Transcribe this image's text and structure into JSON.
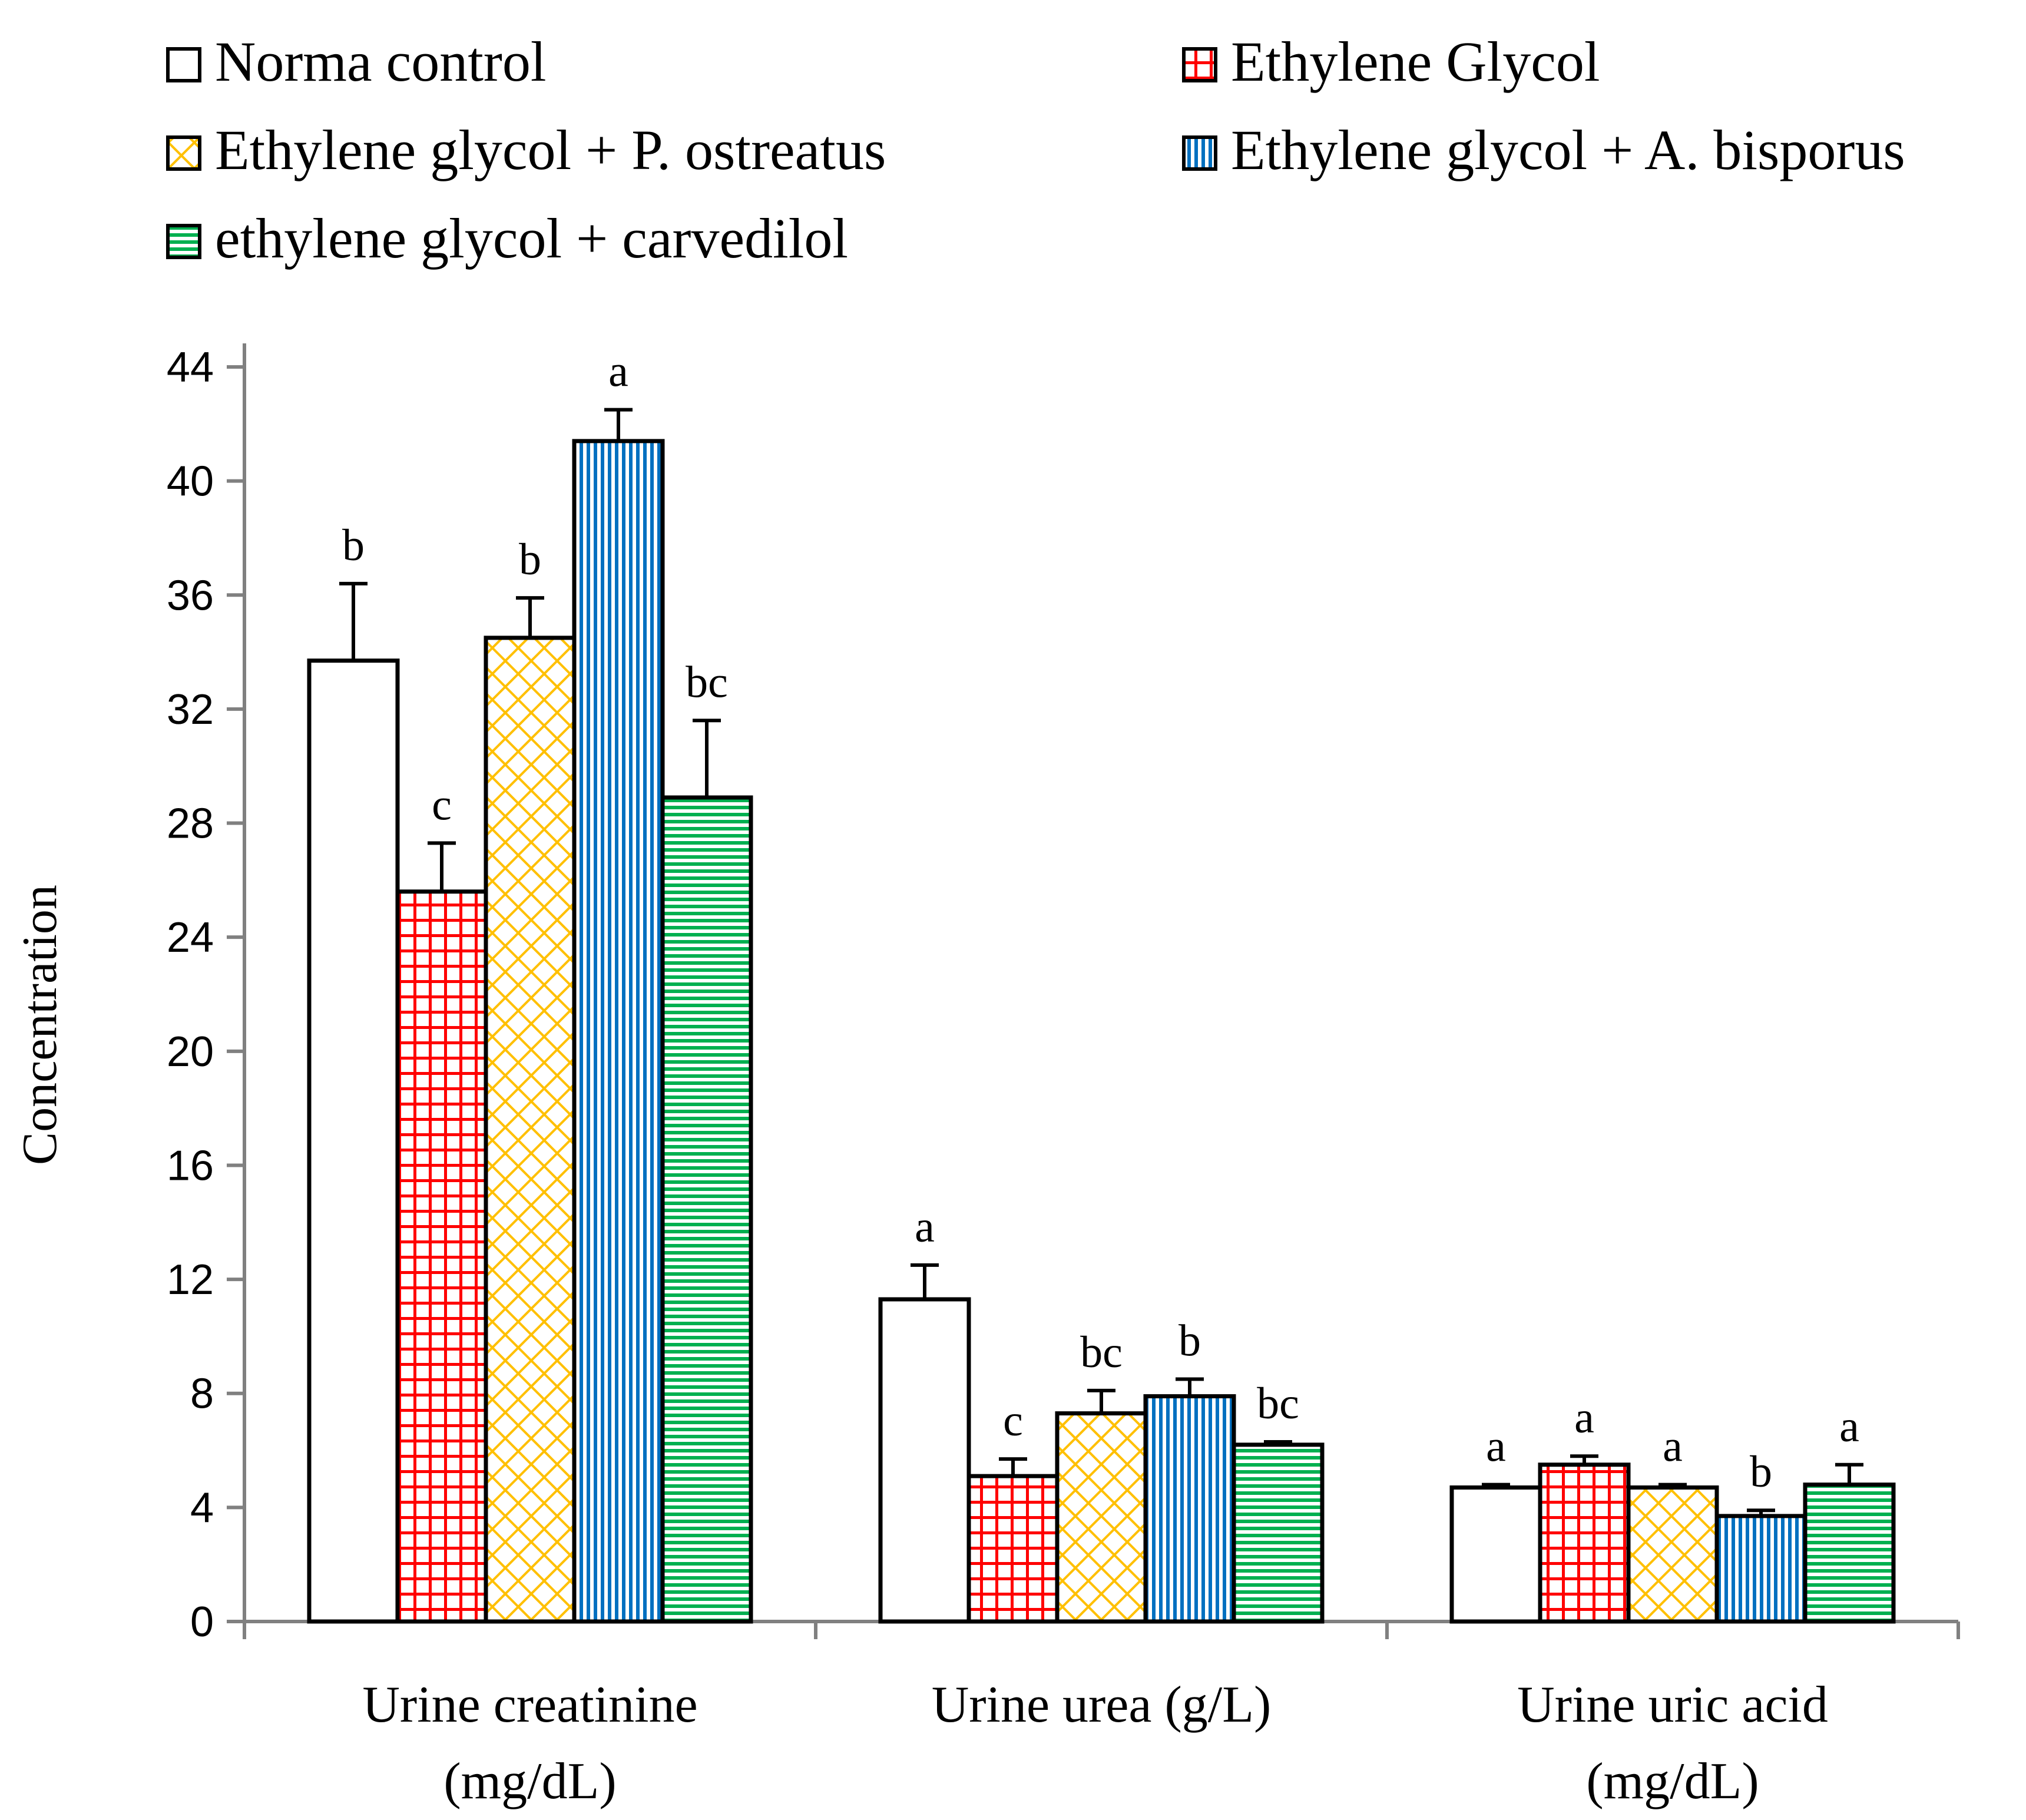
{
  "chart_data": {
    "type": "bar",
    "title": "",
    "xlabel": "",
    "ylabel": "Concentration",
    "ylim": [
      0,
      44
    ],
    "yticks": [
      "0",
      "4",
      "8",
      "12",
      "16",
      "20",
      "24",
      "28",
      "32",
      "36",
      "40",
      "44"
    ],
    "grid": false,
    "legend_position": "top",
    "categories": [
      [
        "Urine creatinine",
        "(mg/dL)"
      ],
      [
        "Urine urea (g/L)"
      ],
      [
        "Urine uric acid",
        "(mg/dL)"
      ]
    ],
    "series": [
      {
        "name": "Norma control",
        "pattern": "none",
        "color": "#ffffff",
        "values": [
          33.7,
          11.3,
          4.7
        ],
        "errors": [
          2.7,
          1.2,
          0.1
        ],
        "letters": [
          "b",
          "a",
          "a"
        ]
      },
      {
        "name": "Ethylene Glycol",
        "pattern": "grid",
        "color": "#ff0000",
        "values": [
          25.6,
          5.1,
          5.5
        ],
        "errors": [
          1.7,
          0.6,
          0.3
        ],
        "letters": [
          "c",
          "c",
          "a"
        ]
      },
      {
        "name": "Ethylene glycol + P. ostreatus",
        "pattern": "diamond",
        "color": "#ffc000",
        "values": [
          34.5,
          7.3,
          4.7
        ],
        "errors": [
          1.4,
          0.8,
          0.1
        ],
        "letters": [
          "b",
          "bc",
          "a"
        ]
      },
      {
        "name": "Ethylene glycol + A. bisporus",
        "pattern": "vertical",
        "color": "#0070c0",
        "values": [
          41.4,
          7.9,
          3.7
        ],
        "errors": [
          1.1,
          0.6,
          0.2
        ],
        "letters": [
          "a",
          "b",
          "b"
        ]
      },
      {
        "name": "ethylene glycol + carvedilol",
        "pattern": "horizontal",
        "color": "#00b050",
        "values": [
          28.9,
          6.2,
          4.8
        ],
        "errors": [
          2.7,
          0.1,
          0.7
        ],
        "letters": [
          "bc",
          "bc",
          "a"
        ]
      }
    ]
  }
}
